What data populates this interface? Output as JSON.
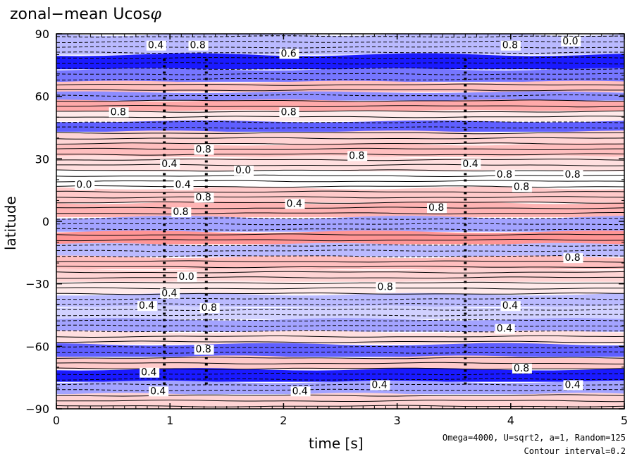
{
  "chart_data": {
    "type": "heatmap",
    "title": "zonal−mean Ucos",
    "title_symbol": "φ",
    "xlabel": "time [s]",
    "ylabel": "latitude",
    "xlim": [
      0,
      5
    ],
    "ylim": [
      -90,
      90
    ],
    "x_ticks": [
      0,
      1,
      2,
      3,
      4,
      5
    ],
    "y_ticks": [
      -90,
      -60,
      -30,
      0,
      30,
      60,
      90
    ],
    "y_tick_labels": [
      "−90",
      "−60",
      "−30",
      "0",
      "30",
      "60",
      "90"
    ],
    "footnote_1": "Omega=4000, U=sqrt2, a=1, Random=125",
    "footnote_2": "Contour interval=0.2",
    "colors": {
      "positive": "#ff2a2a",
      "negative": "#1a1aff",
      "contour": "#000000"
    },
    "bands": [
      {
        "lat": 84,
        "value": -0.6
      },
      {
        "lat": 76,
        "value": -2.0
      },
      {
        "lat": 70,
        "value": -1.2
      },
      {
        "lat": 64,
        "value": 0.6
      },
      {
        "lat": 60,
        "value": -1.0
      },
      {
        "lat": 56,
        "value": 0.8
      },
      {
        "lat": 50,
        "value": 0.2
      },
      {
        "lat": 46,
        "value": -1.4
      },
      {
        "lat": 40,
        "value": 0.4
      },
      {
        "lat": 34,
        "value": 0.6
      },
      {
        "lat": 28,
        "value": 0.3
      },
      {
        "lat": 20,
        "value": 0.0
      },
      {
        "lat": 12,
        "value": 0.5
      },
      {
        "lat": 6,
        "value": 0.7
      },
      {
        "lat": -2,
        "value": -0.8
      },
      {
        "lat": -8,
        "value": 1.0
      },
      {
        "lat": -14,
        "value": -0.6
      },
      {
        "lat": -20,
        "value": 0.6
      },
      {
        "lat": -26,
        "value": 0.4
      },
      {
        "lat": -32,
        "value": 0.2
      },
      {
        "lat": -38,
        "value": -0.6
      },
      {
        "lat": -44,
        "value": -0.4
      },
      {
        "lat": -50,
        "value": -0.8
      },
      {
        "lat": -56,
        "value": 0.3
      },
      {
        "lat": -62,
        "value": -1.4
      },
      {
        "lat": -68,
        "value": 0.5
      },
      {
        "lat": -74,
        "value": -2.0
      },
      {
        "lat": -80,
        "value": -0.8
      },
      {
        "lat": -86,
        "value": 0.4
      }
    ],
    "contour_labels": [
      {
        "text": "0.4",
        "t": 0.88,
        "lat": 83
      },
      {
        "text": "0.8",
        "t": 1.25,
        "lat": 83
      },
      {
        "text": "0.0",
        "t": 4.53,
        "lat": 85
      },
      {
        "text": "0.8",
        "t": 4.0,
        "lat": 83
      },
      {
        "text": "0.6",
        "t": 2.05,
        "lat": 79
      },
      {
        "text": "0.8",
        "t": 0.55,
        "lat": 51
      },
      {
        "text": "0.8",
        "t": 2.05,
        "lat": 51
      },
      {
        "text": "0.4",
        "t": 1.0,
        "lat": 26
      },
      {
        "text": "0.8",
        "t": 1.3,
        "lat": 33
      },
      {
        "text": "0.0",
        "t": 1.65,
        "lat": 23
      },
      {
        "text": "0.8",
        "t": 2.65,
        "lat": 30
      },
      {
        "text": "0.0",
        "t": 0.25,
        "lat": 16
      },
      {
        "text": "0.4",
        "t": 1.12,
        "lat": 16
      },
      {
        "text": "0.8",
        "t": 1.3,
        "lat": 10
      },
      {
        "text": "0.4",
        "t": 2.1,
        "lat": 7
      },
      {
        "text": "0.8",
        "t": 1.1,
        "lat": 3
      },
      {
        "text": "0.8",
        "t": 3.35,
        "lat": 5
      },
      {
        "text": "0.8",
        "t": 3.95,
        "lat": 21
      },
      {
        "text": "0.8",
        "t": 4.1,
        "lat": 15
      },
      {
        "text": "0.4",
        "t": 3.65,
        "lat": 26
      },
      {
        "text": "0.8",
        "t": 4.55,
        "lat": 21
      },
      {
        "text": "0.8",
        "t": 4.55,
        "lat": -19
      },
      {
        "text": "0.0",
        "t": 1.15,
        "lat": -28
      },
      {
        "text": "0.4",
        "t": 1.0,
        "lat": -36
      },
      {
        "text": "0.8",
        "t": 2.9,
        "lat": -33
      },
      {
        "text": "0.4",
        "t": 0.8,
        "lat": -42
      },
      {
        "text": "0.8",
        "t": 1.35,
        "lat": -43
      },
      {
        "text": "0.4",
        "t": 4.0,
        "lat": -42
      },
      {
        "text": "0.4",
        "t": 3.95,
        "lat": -53
      },
      {
        "text": "0.4",
        "t": 0.82,
        "lat": -74
      },
      {
        "text": "0.4",
        "t": 0.9,
        "lat": -83
      },
      {
        "text": "0.4",
        "t": 2.15,
        "lat": -83
      },
      {
        "text": "0.4",
        "t": 2.85,
        "lat": -80
      },
      {
        "text": "0.4",
        "t": 4.55,
        "lat": -80
      },
      {
        "text": "0.8",
        "t": 1.3,
        "lat": -63
      },
      {
        "text": "0.8",
        "t": 4.1,
        "lat": -72
      }
    ]
  }
}
